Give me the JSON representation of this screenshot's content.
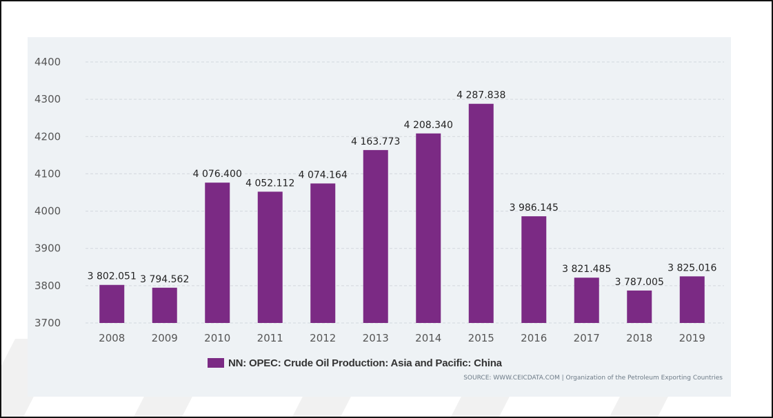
{
  "chart_data": {
    "type": "bar",
    "categories": [
      "2008",
      "2009",
      "2010",
      "2011",
      "2012",
      "2013",
      "2014",
      "2015",
      "2016",
      "2017",
      "2018",
      "2019"
    ],
    "series": [
      {
        "name": "NN: OPEC: Crude Oil Production: Asia and Pacific: China",
        "values": [
          3802.051,
          3794.562,
          4076.4,
          4052.112,
          4074.164,
          4163.773,
          4208.34,
          4287.838,
          3986.145,
          3821.485,
          3787.005,
          3825.016
        ],
        "labels": [
          "3 802.051",
          "3 794.562",
          "4 076.400",
          "4 052.112",
          "4 074.164",
          "4 163.773",
          "4 208.340",
          "4 287.838",
          "3 986.145",
          "3 821.485",
          "3 787.005",
          "3 825.016"
        ],
        "color": "#7b2a84"
      }
    ],
    "yticks": [
      "3700",
      "3800",
      "3900",
      "4000",
      "4100",
      "4200",
      "4300",
      "4400"
    ],
    "ylim": [
      3700,
      4400
    ],
    "grid": true,
    "legend": "bottom-center"
  },
  "legend": {
    "label": "NN: OPEC: Crude Oil Production: Asia and Pacific: China",
    "color": "#7b2a84"
  },
  "source": "SOURCE: WWW.CEICDATA.COM | Organization of the Petroleum Exporting Countries",
  "colors": {
    "panel_background": "#eef2f5",
    "gridline": "#d3d8dd",
    "bar": "#7b2a84"
  }
}
